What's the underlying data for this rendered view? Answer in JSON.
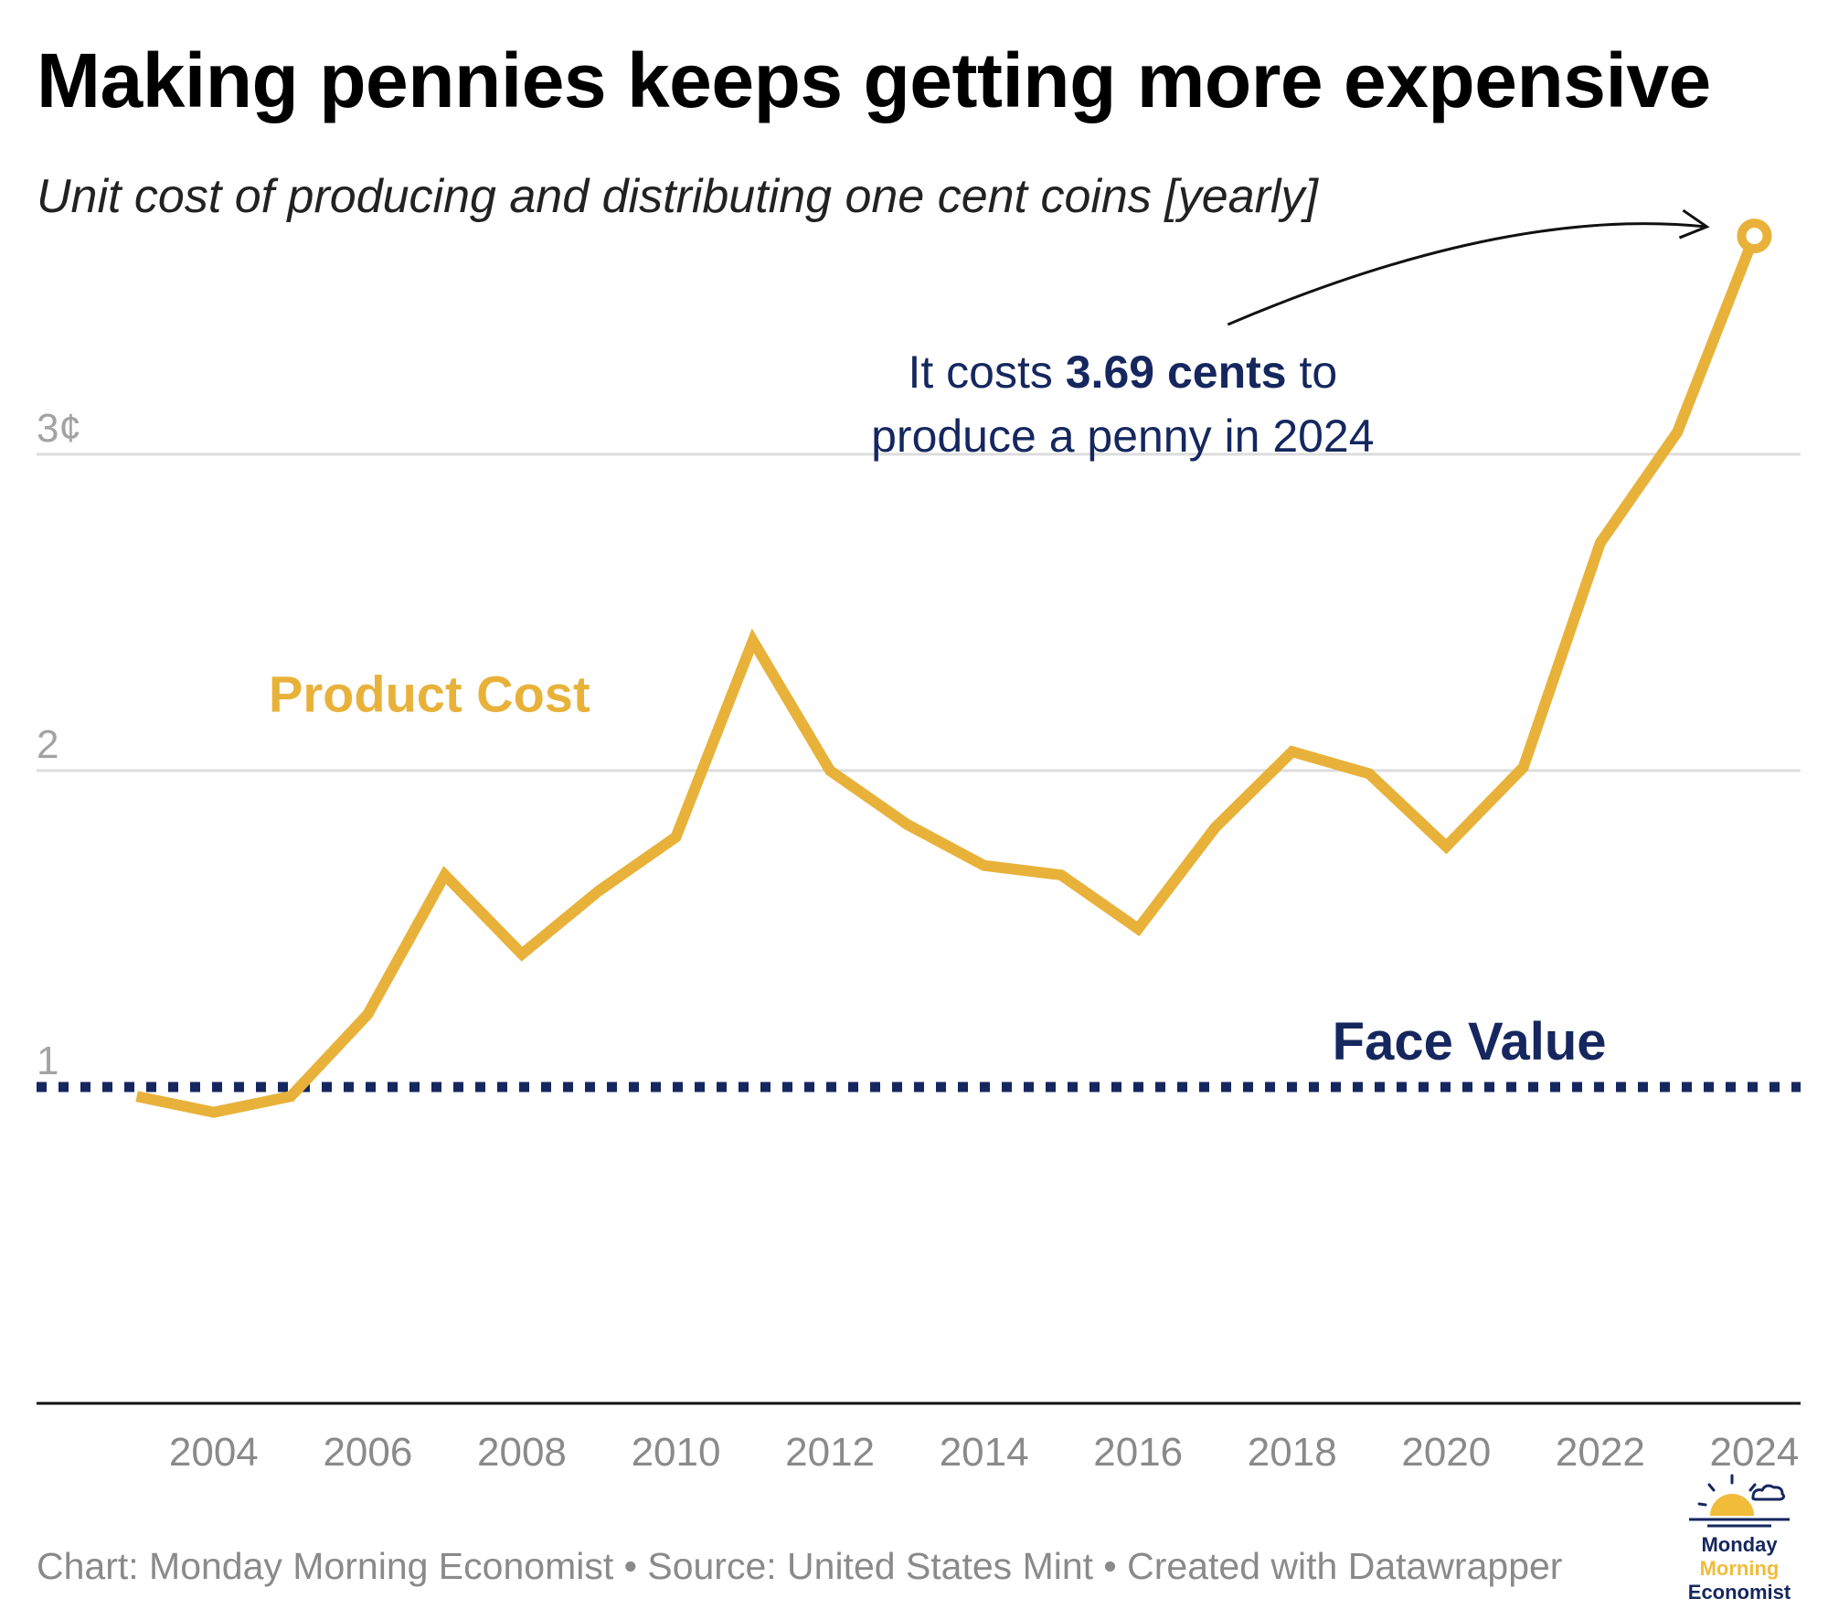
{
  "header": {
    "title": "Making pennies keeps getting more expensive",
    "subtitle": "Unit cost of producing and distributing one cent coins [yearly]"
  },
  "chart_data": {
    "type": "line",
    "title": "Making pennies keeps getting more expensive",
    "subtitle": "Unit cost of producing and distributing one cent coins [yearly]",
    "x": [
      2003,
      2004,
      2005,
      2006,
      2007,
      2008,
      2009,
      2010,
      2011,
      2012,
      2013,
      2014,
      2015,
      2016,
      2017,
      2018,
      2019,
      2020,
      2021,
      2022,
      2023,
      2024
    ],
    "series": [
      {
        "name": "Product Cost",
        "color": "#e8b23a",
        "values": [
          0.97,
          0.92,
          0.97,
          1.23,
          1.67,
          1.42,
          1.62,
          1.79,
          2.41,
          2.0,
          1.83,
          1.7,
          1.67,
          1.5,
          1.82,
          2.06,
          1.99,
          1.76,
          2.01,
          2.72,
          3.07,
          3.69
        ]
      }
    ],
    "reference_lines": [
      {
        "name": "Face Value",
        "value": 1,
        "color": "#15275e",
        "style": "dotted"
      }
    ],
    "y_ticks": [
      {
        "value": 1,
        "label": "1"
      },
      {
        "value": 2,
        "label": "2"
      },
      {
        "value": 3,
        "label": "3¢"
      }
    ],
    "x_ticks": [
      2004,
      2006,
      2008,
      2010,
      2012,
      2014,
      2016,
      2018,
      2020,
      2022,
      2024
    ],
    "xlim": [
      2001.7,
      2024.6
    ],
    "ylim": [
      0,
      3.8
    ],
    "grid": true,
    "annotation": {
      "line1_pre": "It costs ",
      "line1_bold": "3.69 cents",
      "line1_post": " to",
      "line2": "produce a penny in 2024"
    },
    "colors": {
      "line": "#e8b23a",
      "face_value": "#15275e",
      "grid": "#dddddd",
      "axis": "#111111",
      "tick_text": "#8a8a8a",
      "y_tick_text": "#a3a3a3"
    }
  },
  "footer": {
    "text": "Chart: Monday Morning Economist • Source: United States Mint • Created with Datawrapper"
  },
  "logo": {
    "line1": "Monday",
    "line2": "Morning",
    "line3": "Economist",
    "color_dark": "#15275e",
    "color_sun": "#f0bc3a"
  }
}
